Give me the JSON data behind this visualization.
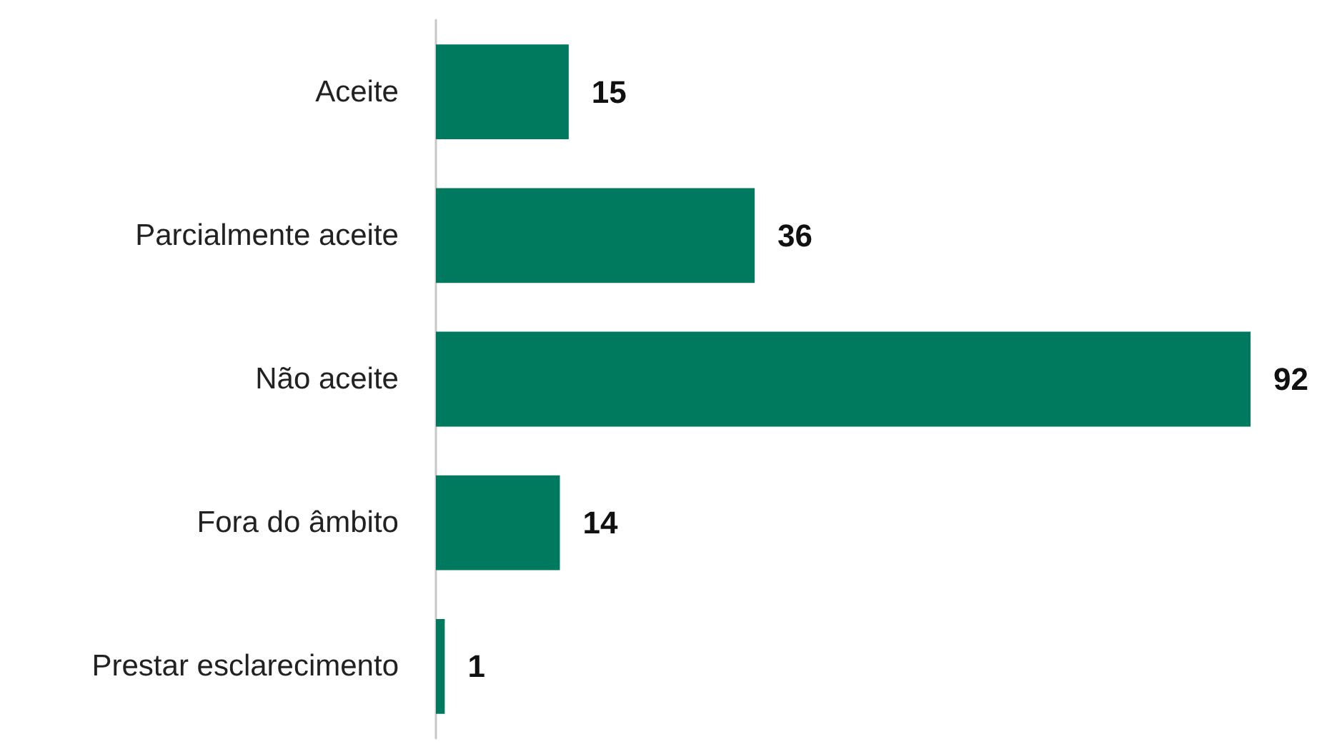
{
  "chart_data": {
    "type": "bar",
    "orientation": "horizontal",
    "categories": [
      "Aceite",
      "Parcialmente aceite",
      "Não aceite",
      "Fora do âmbito",
      "Prestar esclarecimento"
    ],
    "values": [
      15,
      36,
      92,
      14,
      1
    ],
    "color": "#007a5e",
    "data_labels": true
  }
}
